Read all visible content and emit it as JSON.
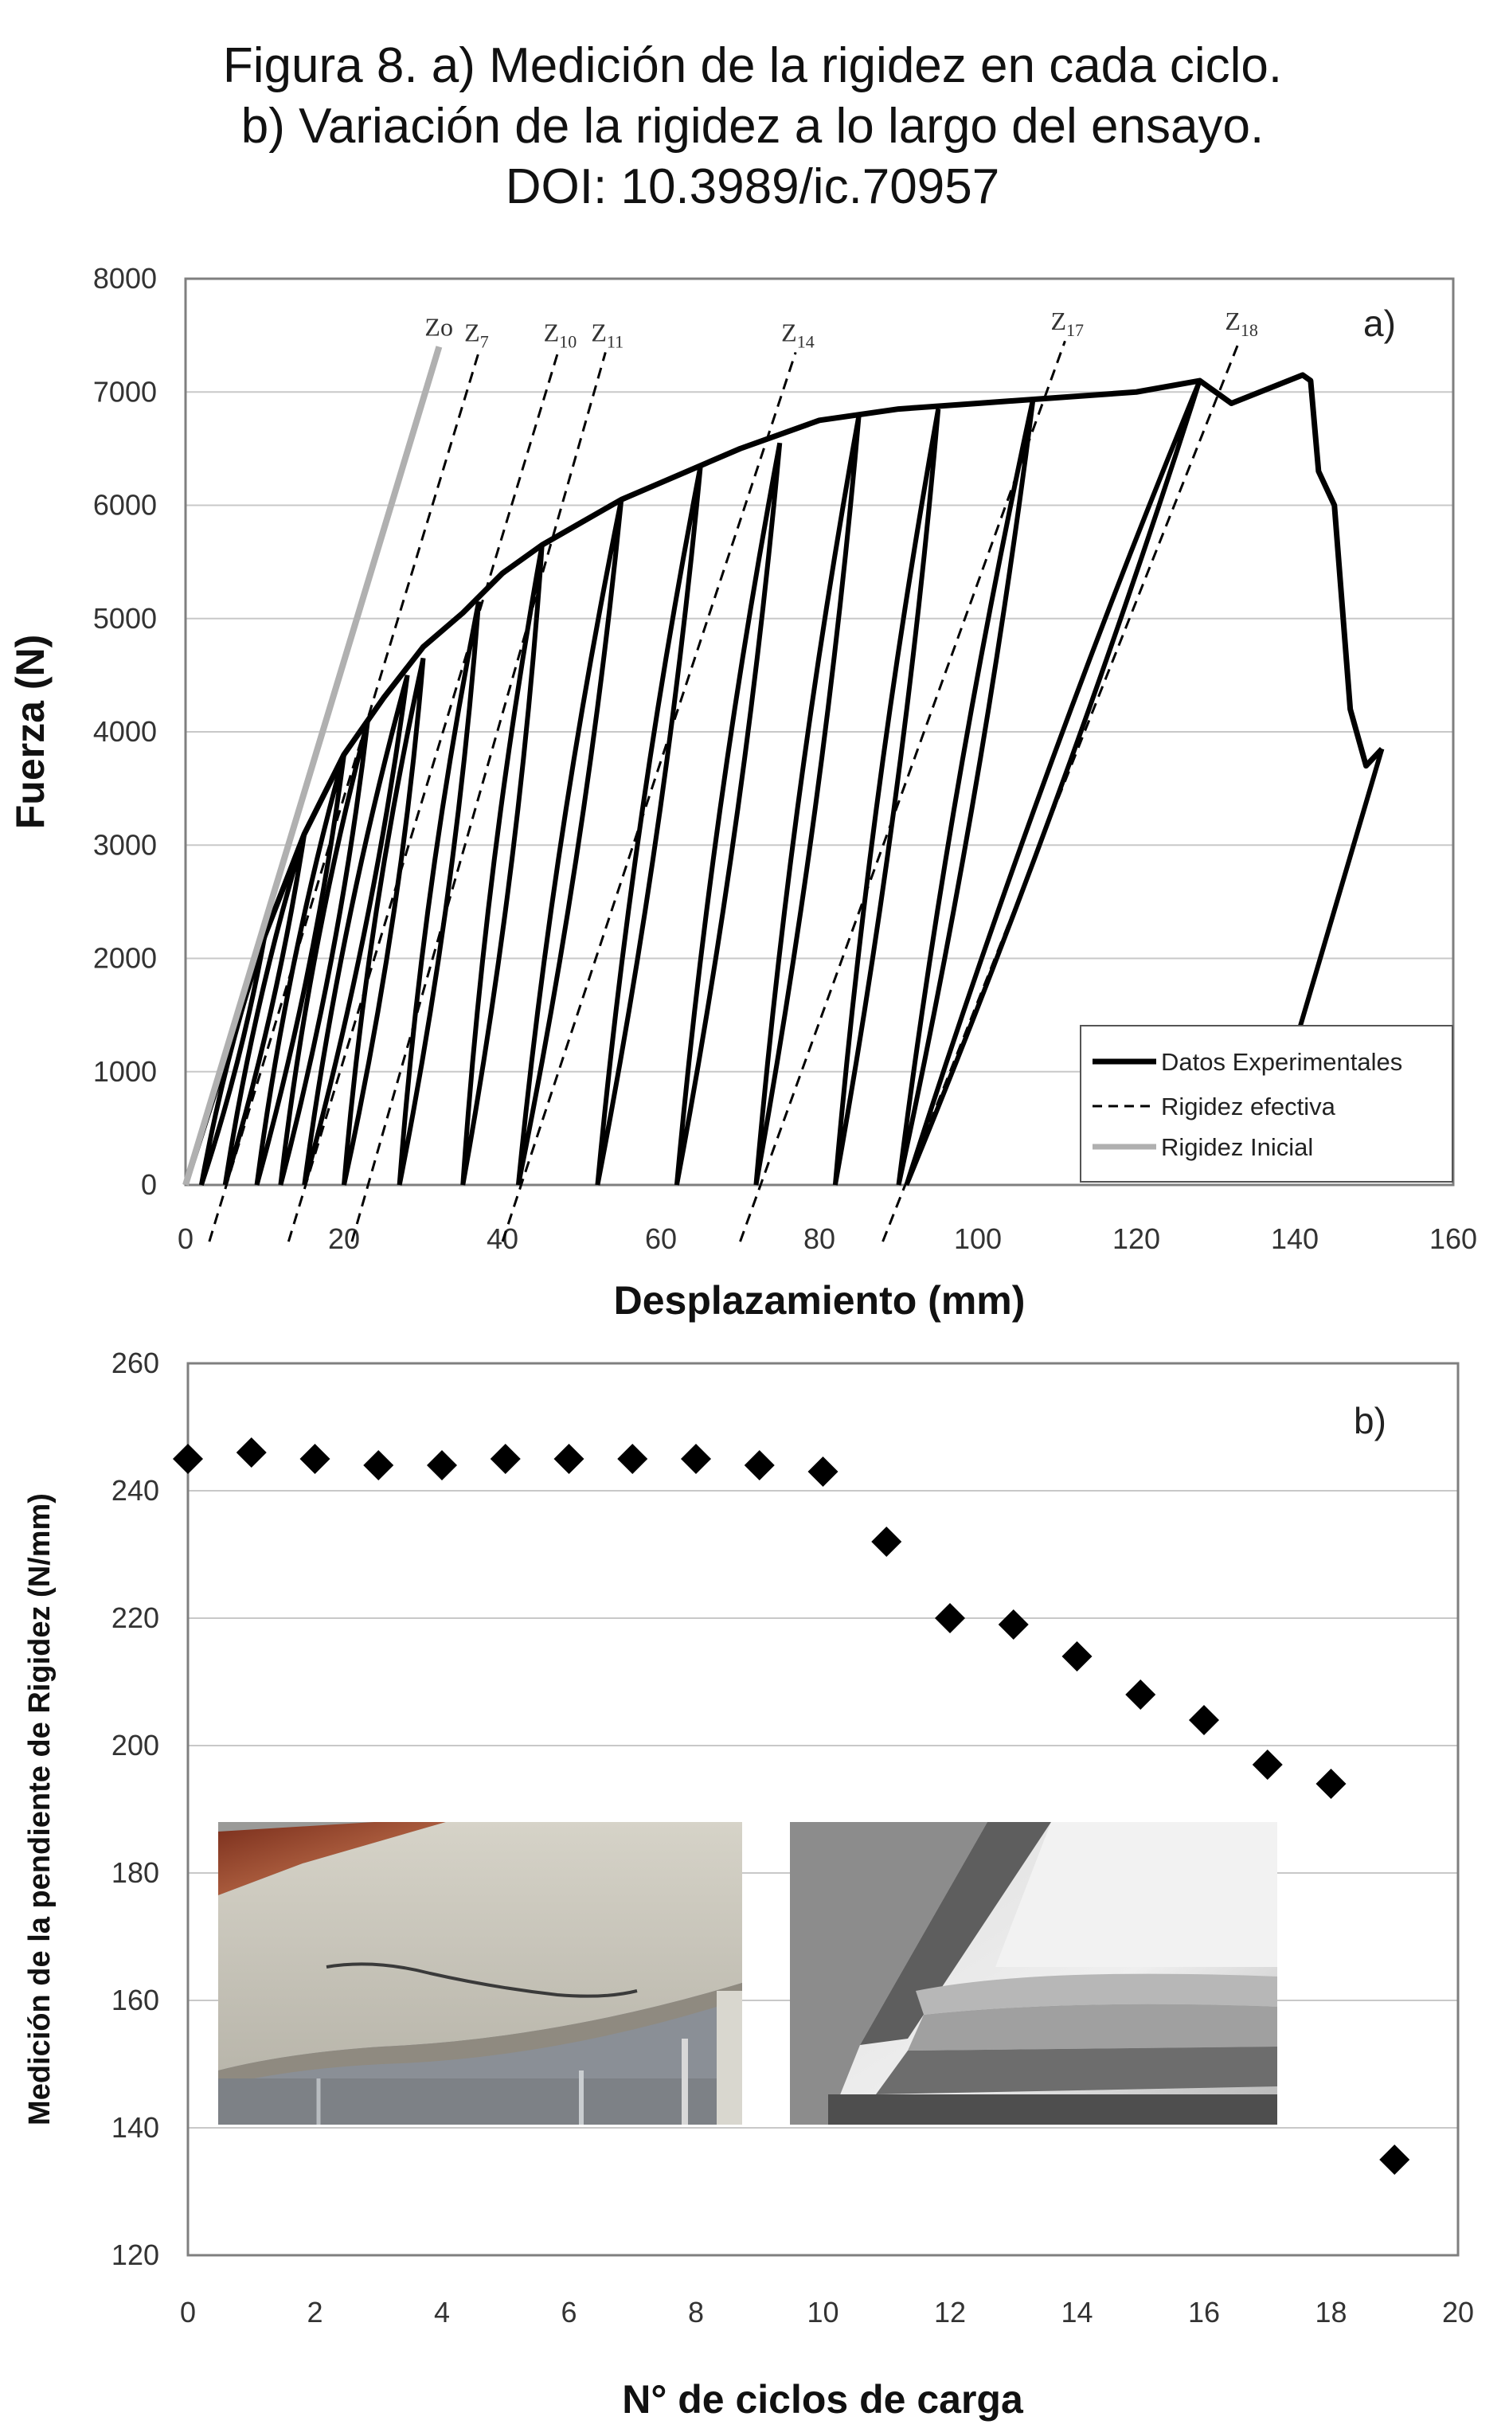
{
  "caption": {
    "line1": "Figura 8. a) Medición de la rigidez en cada ciclo.",
    "line2": "b) Variación de la rigidez a lo largo del ensayo.",
    "line3": "DOI: 10.3989/ic.70957"
  },
  "chart_data": [
    {
      "type": "line",
      "panel_label": "a)",
      "xlabel": "Desplazamiento  (mm)",
      "ylabel": "Fuerza  (N)",
      "xlim": [
        0,
        160
      ],
      "ylim": [
        0,
        8000
      ],
      "xticks": [
        "0",
        "20",
        "40",
        "60",
        "80",
        "100",
        "120",
        "140",
        "160"
      ],
      "yticks": [
        "0",
        "1000",
        "2000",
        "3000",
        "4000",
        "5000",
        "6000",
        "7000",
        "8000"
      ],
      "grid": "horizontal",
      "legend_position": "bottom-right",
      "legend": [
        "Datos Experimentales",
        "Rigidez efectiva",
        "Rigidez Inicial"
      ],
      "envelope": {
        "name": "Datos Experimentales",
        "x": [
          0,
          5,
          10,
          15,
          20,
          25,
          30,
          35,
          40,
          45,
          50,
          55,
          60,
          70,
          80,
          90,
          100,
          110,
          120,
          128,
          132,
          141,
          142,
          143,
          145,
          147,
          149,
          151
        ],
        "y": [
          0,
          1100,
          2200,
          3100,
          3800,
          4300,
          4750,
          5050,
          5400,
          5650,
          5850,
          6050,
          6200,
          6500,
          6750,
          6850,
          6900,
          6950,
          7000,
          7100,
          6900,
          7150,
          7100,
          6300,
          6000,
          4200,
          3700,
          3850
        ]
      },
      "post_peak_unloading": {
        "x": [
          151,
          139
        ],
        "y": [
          3850,
          1000
        ]
      },
      "unload_reload_loops": [
        {
          "start_x": 2,
          "peak_x": 10,
          "peak_y": 2200
        },
        {
          "start_x": 5,
          "peak_x": 15,
          "peak_y": 3100
        },
        {
          "start_x": 9,
          "peak_x": 20,
          "peak_y": 3800
        },
        {
          "start_x": 12,
          "peak_x": 23,
          "peak_y": 4100
        },
        {
          "start_x": 15,
          "peak_x": 28,
          "peak_y": 4500
        },
        {
          "start_x": 20,
          "peak_x": 30,
          "peak_y": 4650
        },
        {
          "start_x": 27,
          "peak_x": 37,
          "peak_y": 5150
        },
        {
          "start_x": 35,
          "peak_x": 45,
          "peak_y": 5650
        },
        {
          "start_x": 42,
          "peak_x": 55,
          "peak_y": 6050
        },
        {
          "start_x": 52,
          "peak_x": 65,
          "peak_y": 6350
        },
        {
          "start_x": 62,
          "peak_x": 75,
          "peak_y": 6550
        },
        {
          "start_x": 72,
          "peak_x": 85,
          "peak_y": 6800
        },
        {
          "start_x": 82,
          "peak_x": 95,
          "peak_y": 6850
        },
        {
          "start_x": 90,
          "peak_x": 107,
          "peak_y": 6950
        },
        {
          "start_x": 91,
          "peak_x": 128,
          "peak_y": 7100
        }
      ],
      "stiffness_lines": [
        {
          "label": "Zo",
          "name": "Rigidez Inicial",
          "x": [
            0,
            32
          ],
          "y": [
            0,
            7400
          ]
        },
        {
          "label": "Z7",
          "name": "Rigidez efectiva",
          "x": [
            3,
            37
          ],
          "y": [
            -500,
            7350
          ]
        },
        {
          "label": "Z10",
          "name": "Rigidez efectiva",
          "x": [
            13,
            47
          ],
          "y": [
            -500,
            7350
          ]
        },
        {
          "label": "Z11",
          "name": "Rigidez efectiva",
          "x": [
            21,
            53
          ],
          "y": [
            -500,
            7350
          ]
        },
        {
          "label": "Z14",
          "name": "Rigidez efectiva",
          "x": [
            40,
            77
          ],
          "y": [
            -500,
            7350
          ]
        },
        {
          "label": "Z17",
          "name": "Rigidez efectiva",
          "x": [
            70,
            111
          ],
          "y": [
            -500,
            7450
          ]
        },
        {
          "label": "Z18",
          "name": "Rigidez efectiva",
          "x": [
            88,
            133
          ],
          "y": [
            -500,
            7450
          ]
        }
      ]
    },
    {
      "type": "scatter",
      "panel_label": "b)",
      "xlabel": "N° de ciclos de carga",
      "ylabel": "Medición de la pendiente de Rigidez  (N/mm)",
      "xlim": [
        0,
        20
      ],
      "ylim": [
        120,
        260
      ],
      "xticks": [
        "0",
        "2",
        "4",
        "6",
        "8",
        "10",
        "12",
        "14",
        "16",
        "18",
        "20"
      ],
      "yticks": [
        "120",
        "140",
        "160",
        "180",
        "200",
        "220",
        "240",
        "260"
      ],
      "grid": "horizontal",
      "marker": "diamond",
      "x": [
        0,
        1,
        2,
        3,
        4,
        5,
        6,
        7,
        8,
        9,
        10,
        11,
        12,
        13,
        14,
        15,
        16,
        17,
        18,
        19
      ],
      "y": [
        245,
        246,
        245,
        244,
        244,
        245,
        245,
        245,
        245,
        244,
        243,
        232,
        220,
        219,
        214,
        208,
        204,
        197,
        194,
        135
      ],
      "inset_photos": [
        "cracked-beam-photo",
        "delamination-photo"
      ]
    }
  ],
  "colors": {
    "data": "#000000",
    "initial_stiffness": "#b0b0b0",
    "grid": "#c8c8c8",
    "frame": "#7f7f7f"
  }
}
